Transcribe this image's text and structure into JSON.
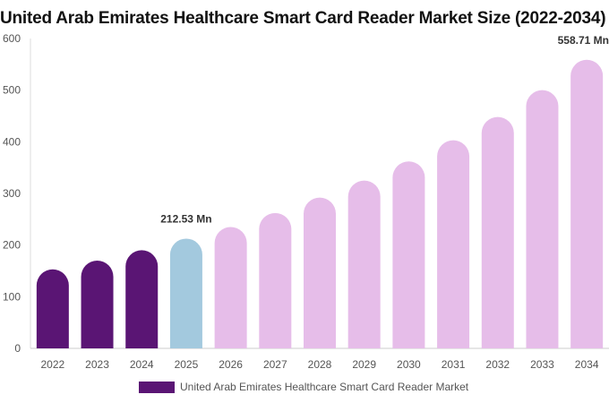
{
  "chart_data": {
    "type": "bar",
    "title": "United Arab Emirates Healthcare Smart Card Reader Market Size (2022-2034)",
    "categories": [
      "2022",
      "2023",
      "2024",
      "2025",
      "2026",
      "2027",
      "2028",
      "2029",
      "2030",
      "2031",
      "2032",
      "2033",
      "2034"
    ],
    "series": [
      {
        "name": "United Arab Emirates Healthcare Smart Card Reader Market",
        "values": [
          153,
          170,
          190,
          212.53,
          235,
          262,
          292,
          325,
          362,
          403,
          448,
          500,
          558.71
        ]
      }
    ],
    "ylim": [
      0,
      600
    ],
    "yticks": [
      0,
      100,
      200,
      300,
      400,
      500,
      600
    ],
    "annotations": [
      {
        "category": "2025",
        "text": "212.53 Mn"
      },
      {
        "category": "2034",
        "text": "558.71 Mn"
      }
    ],
    "bar_colors": {
      "historical": "#5a1574",
      "current": "#a3c9de",
      "forecast": "#e6bde9"
    },
    "grid": false,
    "legend_position": "bottom"
  }
}
